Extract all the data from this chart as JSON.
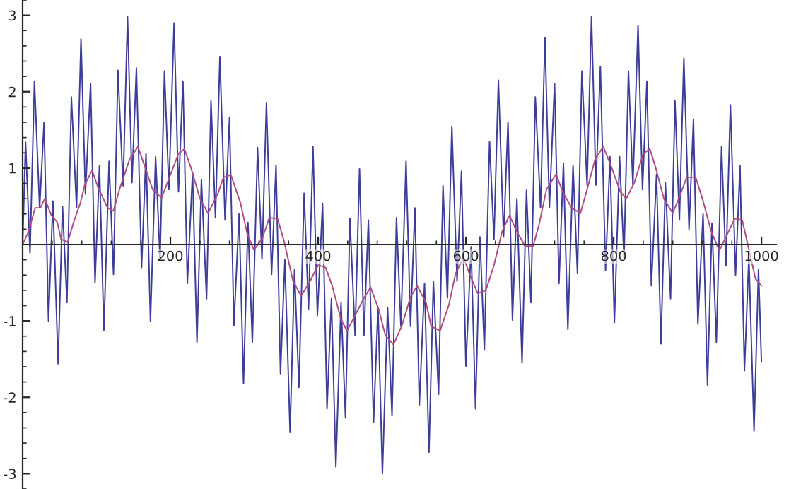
{
  "chart_data": {
    "type": "line",
    "xlim": [
      0,
      1020
    ],
    "ylim": [
      -3.2,
      3.2
    ],
    "xticks": [
      200,
      400,
      600,
      800,
      1000
    ],
    "yticks": [
      -3,
      -2,
      -1,
      1,
      2,
      3
    ],
    "grid": false,
    "legend": false,
    "marker": "none",
    "line_style": "solid",
    "series": [
      {
        "color": "#3d3d99",
        "x": [
          0,
          4,
          10,
          16,
          23,
          29,
          35,
          41,
          48,
          54,
          60,
          66,
          73,
          79,
          85,
          92,
          98,
          104,
          110,
          117,
          123,
          129,
          136,
          142,
          148,
          154,
          161,
          167,
          173,
          180,
          186,
          192,
          198,
          205,
          211,
          217,
          223,
          230,
          236,
          242,
          249,
          255,
          261,
          267,
          274,
          280,
          286,
          293,
          299,
          305,
          311,
          318,
          324,
          330,
          337,
          343,
          349,
          355,
          362,
          368,
          374,
          381,
          387,
          393,
          399,
          406,
          412,
          418,
          424,
          431,
          437,
          443,
          450,
          456,
          462,
          468,
          475,
          481,
          487,
          494,
          500,
          506,
          512,
          519,
          525,
          531,
          537,
          544,
          550,
          556,
          563,
          569,
          575,
          581,
          588,
          594,
          600,
          607,
          613,
          619,
          625,
          632,
          638,
          644,
          651,
          657,
          663,
          669,
          676,
          682,
          688,
          694,
          701,
          707,
          713,
          720,
          726,
          732,
          738,
          745,
          751,
          757,
          764,
          770,
          776,
          782,
          789,
          795,
          801,
          808,
          814,
          820,
          826,
          833,
          839,
          845,
          851,
          858,
          864,
          870,
          877,
          883,
          889,
          895,
          902,
          908,
          914,
          921,
          927,
          933,
          939,
          946,
          952,
          958,
          965,
          971,
          977,
          983,
          990,
          996,
          1000
        ],
        "values": [
          0,
          1.34,
          -0.11,
          2.14,
          0.48,
          1.6,
          -1.0,
          0.57,
          -1.56,
          0.5,
          -0.76,
          1.93,
          0.48,
          2.69,
          0.66,
          2.11,
          -0.5,
          1.03,
          -1.12,
          1.09,
          -0.39,
          2.28,
          0.77,
          2.98,
          0.81,
          2.31,
          -0.3,
          1.19,
          -1.0,
          1.15,
          -0.19,
          2.27,
          0.72,
          2.9,
          0.69,
          2.14,
          -0.51,
          0.94,
          -1.28,
          0.85,
          -0.71,
          1.88,
          0.35,
          2.46,
          0.32,
          1.66,
          -1.06,
          0.4,
          -1.82,
          0.29,
          -1.28,
          1.27,
          -0.19,
          1.85,
          -0.39,
          1.04,
          -1.69,
          -0.2,
          -2.46,
          -0.33,
          -1.87,
          0.67,
          -0.85,
          1.28,
          -0.93,
          0.54,
          -2.15,
          -0.71,
          -2.91,
          -0.76,
          -2.27,
          0.34,
          -1.19,
          0.99,
          -1.19,
          0.32,
          -2.33,
          -0.82,
          -3.0,
          -0.82,
          -2.24,
          0.35,
          -1.07,
          1.09,
          -1.07,
          0.48,
          -2.1,
          -0.51,
          -2.72,
          -0.48,
          -1.96,
          0.77,
          -0.7,
          1.54,
          -0.48,
          0.96,
          -1.59,
          -0.03,
          -2.15,
          0.1,
          -1.38,
          1.35,
          0.07,
          2.15,
          0.1,
          1.6,
          -0.99,
          0.6,
          -1.55,
          0.71,
          -0.76,
          1.93,
          0.48,
          2.71,
          0.48,
          2.11,
          -0.51,
          1.06,
          -1.11,
          1.03,
          -0.38,
          2.27,
          0.78,
          2.98,
          0.78,
          2.33,
          -0.34,
          1.15,
          -1.02,
          1.15,
          -0.17,
          2.27,
          0.78,
          2.87,
          0.72,
          2.14,
          -0.54,
          0.92,
          -1.3,
          0.81,
          -0.71,
          1.88,
          0.32,
          2.44,
          0.2,
          1.64,
          -1.04,
          0.4,
          -1.84,
          0.28,
          -1.28,
          1.28,
          -0.28,
          1.83,
          -0.4,
          1.03,
          -1.65,
          -0.17,
          -2.44,
          -0.33,
          -1.53
        ]
      },
      {
        "color": "#b04a80",
        "x": [
          0,
          8,
          17,
          24,
          30,
          39,
          47,
          52,
          61,
          70,
          78,
          84,
          94,
          102,
          115,
          123,
          131,
          145,
          156,
          164,
          176,
          188,
          198,
          211,
          219,
          228,
          240,
          251,
          264,
          272,
          282,
          295,
          304,
          313,
          324,
          334,
          345,
          354,
          366,
          377,
          388,
          400,
          410,
          419,
          431,
          439,
          451,
          462,
          471,
          482,
          491,
          502,
          513,
          525,
          534,
          546,
          553,
          565,
          577,
          586,
          597,
          605,
          616,
          627,
          638,
          649,
          659,
          669,
          680,
          691,
          699,
          709,
          722,
          731,
          743,
          755,
          764,
          775,
          786,
          796,
          809,
          817,
          828,
          840,
          849,
          857,
          868,
          880,
          888,
          899,
          911,
          921,
          932,
          943,
          952,
          964,
          974,
          982,
          992,
          1000
        ],
        "values": [
          0,
          0.17,
          0.48,
          0.48,
          0.6,
          0.38,
          0.29,
          0.07,
          0.03,
          0.32,
          0.54,
          0.78,
          0.97,
          0.75,
          0.48,
          0.44,
          0.72,
          1.12,
          1.28,
          1.06,
          0.72,
          0.61,
          0.86,
          1.19,
          1.25,
          1.0,
          0.6,
          0.41,
          0.66,
          0.88,
          0.91,
          0.54,
          0.14,
          -0.07,
          0.07,
          0.35,
          0.34,
          0.04,
          -0.48,
          -0.67,
          -0.5,
          -0.27,
          -0.3,
          -0.54,
          -0.98,
          -1.13,
          -0.91,
          -0.7,
          -0.56,
          -0.85,
          -1.19,
          -1.31,
          -1.07,
          -0.69,
          -0.54,
          -0.76,
          -1.07,
          -1.13,
          -0.79,
          -0.38,
          -0.17,
          -0.39,
          -0.64,
          -0.6,
          -0.27,
          0.17,
          0.38,
          0.17,
          -0.02,
          -0.02,
          0.26,
          0.72,
          0.92,
          0.69,
          0.48,
          0.41,
          0.72,
          1.12,
          1.28,
          1.04,
          0.69,
          0.6,
          0.81,
          1.19,
          1.25,
          1.0,
          0.6,
          0.41,
          0.6,
          0.88,
          0.88,
          0.57,
          0.17,
          -0.08,
          0.1,
          0.34,
          0.32,
          -0.02,
          -0.45,
          -0.54
        ]
      }
    ]
  }
}
